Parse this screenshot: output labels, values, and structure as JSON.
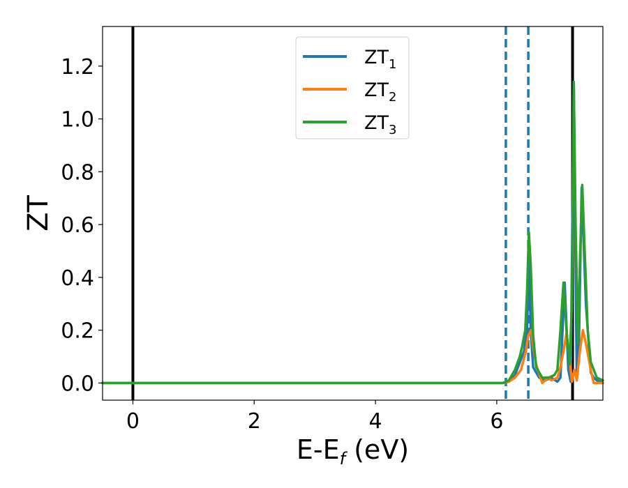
{
  "chart_data": {
    "type": "line",
    "xlabel": {
      "main": "E-E",
      "sub": "f",
      "suffix": " (eV)"
    },
    "ylabel": "ZT",
    "xlim": [
      -0.5,
      7.75
    ],
    "ylim": [
      -0.065,
      1.35
    ],
    "x_ticks": [
      0,
      2,
      4,
      6
    ],
    "x_tick_labels": [
      "0",
      "2",
      "4",
      "6"
    ],
    "y_ticks": [
      0.0,
      0.2,
      0.4,
      0.6,
      0.8,
      1.0,
      1.2
    ],
    "y_tick_labels": [
      "0.0",
      "0.2",
      "0.4",
      "0.6",
      "0.8",
      "1.0",
      "1.2"
    ],
    "grid": false,
    "legend_position": "top-center",
    "vlines": [
      {
        "x": 0.0,
        "style": "solid",
        "color": "#000000"
      },
      {
        "x": 6.15,
        "style": "dashed",
        "color": "#1f77b4"
      },
      {
        "x": 6.52,
        "style": "dashed",
        "color": "#1f77b4"
      },
      {
        "x": 7.25,
        "style": "solid",
        "color": "#000000"
      }
    ],
    "series": [
      {
        "name": "ZT",
        "sub": "1",
        "color": "#1f77b4",
        "points": [
          [
            -0.5,
            0.0
          ],
          [
            6.1,
            0.0
          ],
          [
            6.2,
            0.005
          ],
          [
            6.3,
            0.03
          ],
          [
            6.4,
            0.09
          ],
          [
            6.45,
            0.12
          ],
          [
            6.5,
            0.2
          ],
          [
            6.53,
            0.55
          ],
          [
            6.56,
            0.2
          ],
          [
            6.6,
            0.06
          ],
          [
            6.7,
            0.02
          ],
          [
            6.8,
            0.01
          ],
          [
            6.9,
            0.02
          ],
          [
            7.0,
            0.005
          ],
          [
            7.05,
            0.02
          ],
          [
            7.12,
            0.38
          ],
          [
            7.18,
            0.05
          ],
          [
            7.22,
            0.005
          ],
          [
            7.27,
            1.14
          ],
          [
            7.32,
            0.01
          ],
          [
            7.35,
            0.08
          ],
          [
            7.4,
            0.74
          ],
          [
            7.47,
            0.3
          ],
          [
            7.55,
            0.04
          ],
          [
            7.6,
            0.02
          ],
          [
            7.65,
            0.01
          ],
          [
            7.75,
            0.0
          ]
        ]
      },
      {
        "name": "ZT",
        "sub": "2",
        "color": "#ff7f0e",
        "points": [
          [
            -0.5,
            0.0
          ],
          [
            6.1,
            0.0
          ],
          [
            6.2,
            0.005
          ],
          [
            6.3,
            0.02
          ],
          [
            6.4,
            0.05
          ],
          [
            6.48,
            0.12
          ],
          [
            6.52,
            0.18
          ],
          [
            6.57,
            0.2
          ],
          [
            6.6,
            0.14
          ],
          [
            6.65,
            0.07
          ],
          [
            6.75,
            0.0
          ],
          [
            6.85,
            0.02
          ],
          [
            6.9,
            0.01
          ],
          [
            6.95,
            0.015
          ],
          [
            7.0,
            0.02
          ],
          [
            7.05,
            0.06
          ],
          [
            7.1,
            0.12
          ],
          [
            7.15,
            0.19
          ],
          [
            7.2,
            0.09
          ],
          [
            7.24,
            0.005
          ],
          [
            7.28,
            0.05
          ],
          [
            7.32,
            0.01
          ],
          [
            7.37,
            0.12
          ],
          [
            7.42,
            0.2
          ],
          [
            7.47,
            0.15
          ],
          [
            7.55,
            0.05
          ],
          [
            7.6,
            0.0
          ],
          [
            7.65,
            0.0
          ],
          [
            7.75,
            0.0
          ]
        ]
      },
      {
        "name": "ZT",
        "sub": "3",
        "color": "#2ca02c",
        "points": [
          [
            -0.5,
            0.0
          ],
          [
            6.1,
            0.0
          ],
          [
            6.2,
            0.01
          ],
          [
            6.3,
            0.05
          ],
          [
            6.38,
            0.1
          ],
          [
            6.42,
            0.14
          ],
          [
            6.47,
            0.2
          ],
          [
            6.5,
            0.35
          ],
          [
            6.53,
            0.57
          ],
          [
            6.56,
            0.45
          ],
          [
            6.6,
            0.18
          ],
          [
            6.65,
            0.06
          ],
          [
            6.75,
            0.02
          ],
          [
            6.85,
            0.02
          ],
          [
            6.95,
            0.03
          ],
          [
            7.0,
            0.05
          ],
          [
            7.05,
            0.2
          ],
          [
            7.1,
            0.38
          ],
          [
            7.15,
            0.2
          ],
          [
            7.2,
            0.07
          ],
          [
            7.24,
            0.3
          ],
          [
            7.27,
            1.14
          ],
          [
            7.3,
            0.6
          ],
          [
            7.34,
            0.15
          ],
          [
            7.37,
            0.45
          ],
          [
            7.41,
            0.75
          ],
          [
            7.45,
            0.5
          ],
          [
            7.5,
            0.2
          ],
          [
            7.55,
            0.08
          ],
          [
            7.6,
            0.05
          ],
          [
            7.65,
            0.02
          ],
          [
            7.75,
            0.01
          ]
        ]
      }
    ]
  }
}
